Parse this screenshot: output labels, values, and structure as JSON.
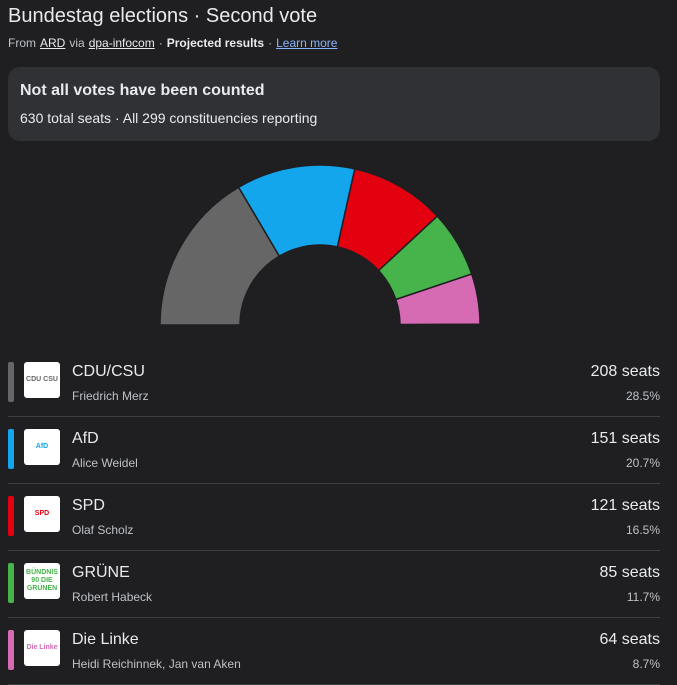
{
  "header": {
    "title": "Bundestag elections · Second vote",
    "from": "From",
    "source_1": "ARD",
    "via": "via",
    "source_2": "dpa-infocom",
    "dot_1": "·",
    "status": "Projected results",
    "dot_2": "·",
    "learn_more": "Learn more"
  },
  "notice": {
    "title": "Not all votes have been counted",
    "detail": "630 total seats · All 299 constituencies reporting"
  },
  "chart_data": {
    "type": "semicircle",
    "categories": [
      "CDU/CSU",
      "AfD",
      "SPD",
      "GRÜNE",
      "Die Linke",
      null
    ],
    "values": [
      208,
      151,
      121,
      85,
      64,
      1
    ],
    "value_labels": [
      "208 seats",
      "151 seats",
      "121 seats",
      "85 seats",
      "64 seats",
      null
    ],
    "colors": [
      "#666666",
      "#14a6ec",
      "#e3000f",
      "#46b44b",
      "#d66bb4",
      "#9aa0a6"
    ]
  },
  "parties": [
    {
      "logo": "CDU CSU",
      "leader": "Friedrich Merz",
      "share": "28.5%"
    },
    {
      "logo": "AfD",
      "leader": "Alice Weidel",
      "share": "20.7%"
    },
    {
      "logo": "SPD",
      "leader": "Olaf Scholz",
      "share": "16.5%"
    },
    {
      "logo": "BÜNDNIS 90 DIE GRÜNEN",
      "leader": "Robert Habeck",
      "share": "11.7%"
    },
    {
      "logo": "Die Linke",
      "leader": "Heidi Reichinnek, Jan van Aken",
      "share": "8.7%"
    }
  ]
}
